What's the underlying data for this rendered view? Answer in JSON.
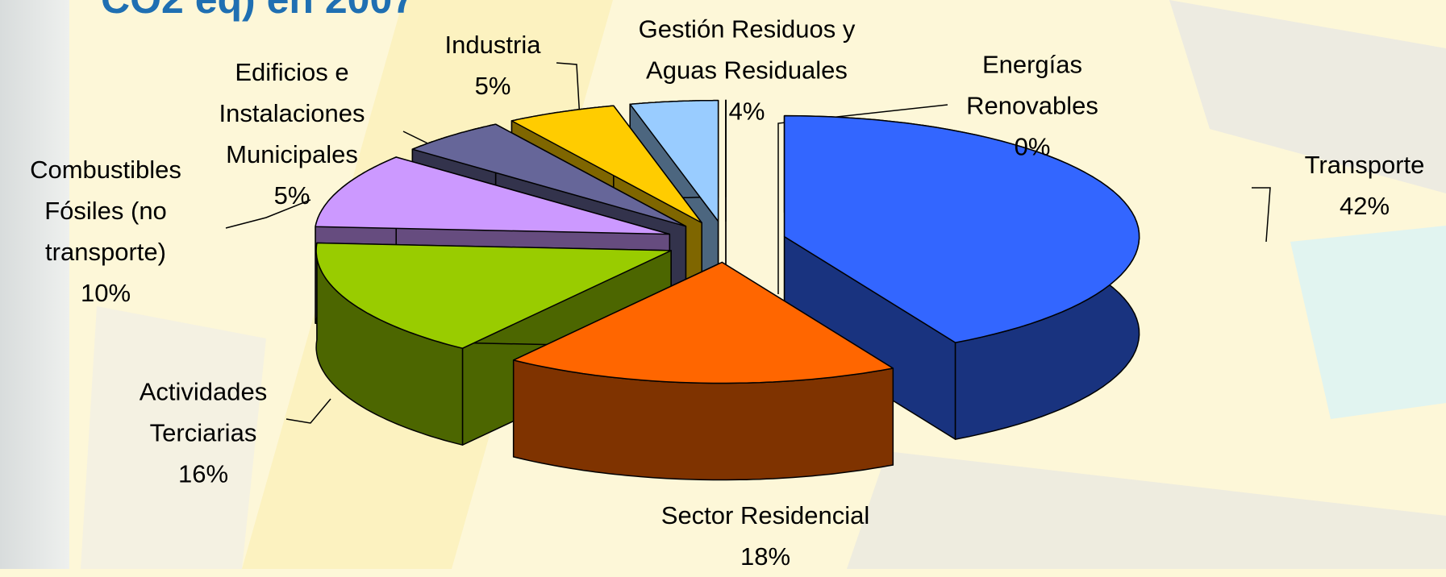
{
  "chart_data": {
    "type": "pie3d",
    "title": "CO2 eq) en 2007",
    "categories": [
      "Transporte",
      "Sector Residencial",
      "Actividades Terciarias",
      "Combustibles Fósiles (no transporte)",
      "Edificios e Instalaciones Municipales",
      "Industria",
      "Gestión Residuos y Aguas Residuales",
      "Energías Renovables"
    ],
    "values": [
      42,
      18,
      16,
      10,
      5,
      5,
      4,
      0
    ],
    "value_labels": [
      "42%",
      "18%",
      "16%",
      "10%",
      "5%",
      "5%",
      "4%",
      "0%"
    ],
    "colors": [
      "#3366ff",
      "#ff6600",
      "#99cc00",
      "#cc99ff",
      "#666699",
      "#ffcc00",
      "#99ccff",
      "#333333"
    ]
  }
}
